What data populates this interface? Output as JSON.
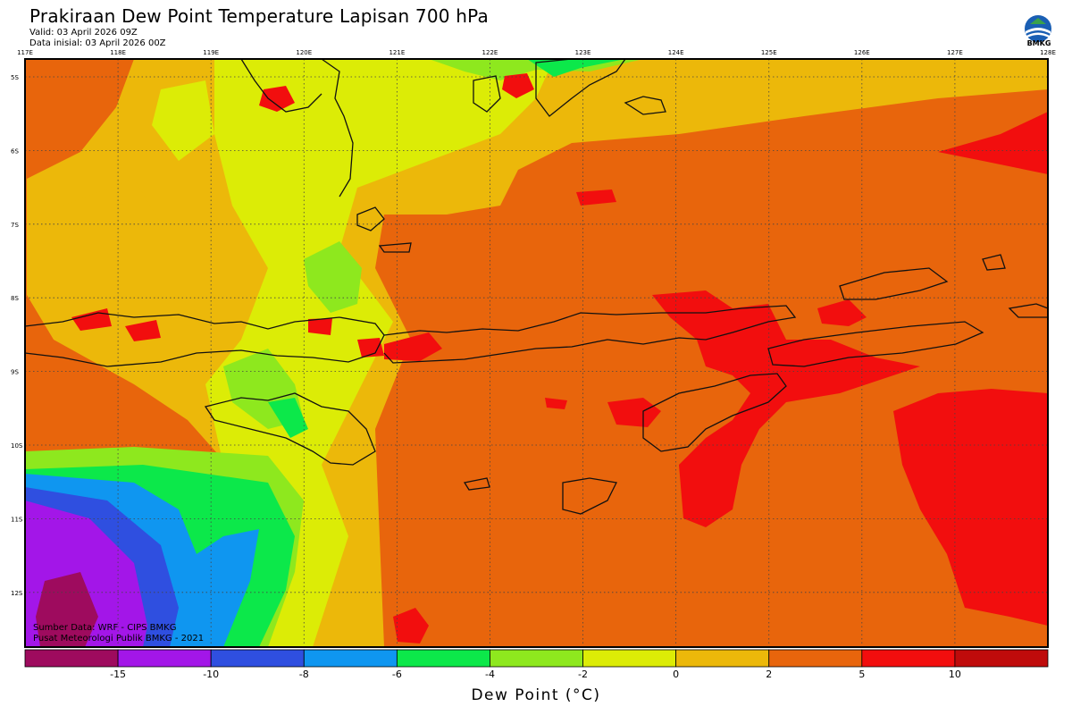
{
  "header": {
    "title": "Prakiraan Dew Point Temperature Lapisan 700 hPa",
    "valid": "Valid: 03 April 2026 09Z",
    "init": "Data inisial: 03 April 2026 00Z"
  },
  "logo": {
    "icon": "bmkg-logo-icon",
    "text": "BMKG"
  },
  "map": {
    "lon_labels": [
      "117E",
      "118E",
      "119E",
      "120E",
      "121E",
      "122E",
      "123E",
      "124E",
      "125E",
      "126E",
      "127E",
      "128E"
    ],
    "lat_labels": [
      "5S",
      "6S",
      "7S",
      "8S",
      "9S",
      "10S",
      "11S",
      "12S"
    ]
  },
  "credits": {
    "source": "Sumber Data: WRF - CIPS BMKG",
    "org": "Pusat Meteorologi Publik BMKG - 2021"
  },
  "colorbar": {
    "colors": [
      "#9e0b5e",
      "#a316e8",
      "#2f4fe0",
      "#0f96f0",
      "#0ce84a",
      "#8ee81e",
      "#dcec06",
      "#ecb80a",
      "#e8650c",
      "#f20e0e",
      "#bf0b0b"
    ],
    "labels": [
      "-15",
      "-10",
      "-8",
      "-6",
      "-4",
      "-2",
      "0",
      "2",
      "5",
      "10"
    ],
    "title": "Dew Point (°C)"
  }
}
